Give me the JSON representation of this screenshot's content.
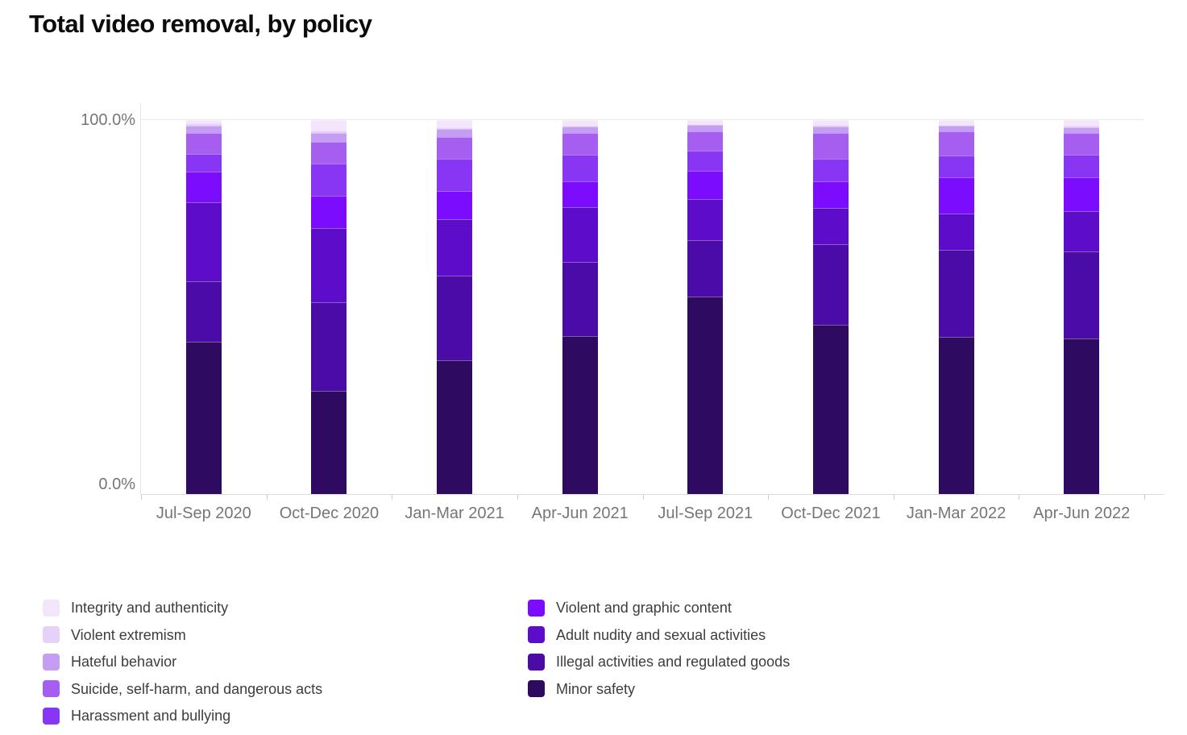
{
  "title": "Total video removal, by policy",
  "y_axis": {
    "top_label": "100.0%",
    "bottom_label": "0.0%"
  },
  "chart_data": {
    "type": "bar",
    "variant": "stacked-100-percent",
    "title": "Total video removal, by policy",
    "xlabel": "",
    "ylabel": "",
    "ylim": [
      0,
      100
    ],
    "y_tick_labels": [
      "0.0%",
      "100.0%"
    ],
    "grid": "top-line-only",
    "legend_position": "bottom-two-columns",
    "categories": [
      "Jul-Sep 2020",
      "Oct-Dec 2020",
      "Jan-Mar 2021",
      "Apr-Jun 2021",
      "Jul-Sep 2021",
      "Oct-Dec 2021",
      "Jan-Mar 2022",
      "Apr-Jun 2022"
    ],
    "series": [
      {
        "name": "Integrity and authenticity",
        "color": "#f3e6fc",
        "values": [
          0.9,
          2.8,
          2.0,
          1.4,
          1.0,
          1.4,
          1.2,
          1.5
        ]
      },
      {
        "name": "Violent extremism",
        "color": "#e6d1f9",
        "values": [
          0.6,
          0.6,
          0.4,
          0.3,
          0.3,
          0.3,
          0.3,
          0.4
        ]
      },
      {
        "name": "Hateful behavior",
        "color": "#c49ef2",
        "values": [
          1.9,
          2.4,
          2.2,
          1.7,
          1.7,
          1.7,
          1.5,
          1.5
        ]
      },
      {
        "name": "Suicide, self-harm, and dangerous acts",
        "color": "#a55ef0",
        "values": [
          5.7,
          5.8,
          5.8,
          5.8,
          5.2,
          6.9,
          6.5,
          5.8
        ]
      },
      {
        "name": "Harassment and bullying",
        "color": "#8836f3",
        "values": [
          4.6,
          8.6,
          8.6,
          7.1,
          5.4,
          6.0,
          5.8,
          6.0
        ]
      },
      {
        "name": "Violent and graphic content",
        "color": "#7b0cfe",
        "values": [
          8.2,
          8.6,
          7.5,
          6.9,
          7.5,
          7.1,
          9.7,
          9.1
        ]
      },
      {
        "name": "Adult nudity and sexual activities",
        "color": "#5d0dca",
        "values": [
          21.3,
          19.8,
          15.1,
          14.7,
          11.0,
          9.7,
          9.7,
          10.8
        ]
      },
      {
        "name": "Illegal activities and regulated goods",
        "color": "#4a0ba6",
        "values": [
          16.0,
          23.7,
          22.6,
          19.8,
          15.1,
          21.6,
          23.3,
          23.3
        ]
      },
      {
        "name": "Minor safety",
        "color": "#2e0a60",
        "values": [
          40.8,
          27.6,
          35.8,
          42.2,
          52.8,
          45.3,
          42.0,
          41.6
        ]
      }
    ],
    "legend_columns": {
      "left_series_indexes": [
        0,
        1,
        2,
        3,
        4
      ],
      "right_series_indexes": [
        5,
        6,
        7,
        8
      ]
    }
  }
}
